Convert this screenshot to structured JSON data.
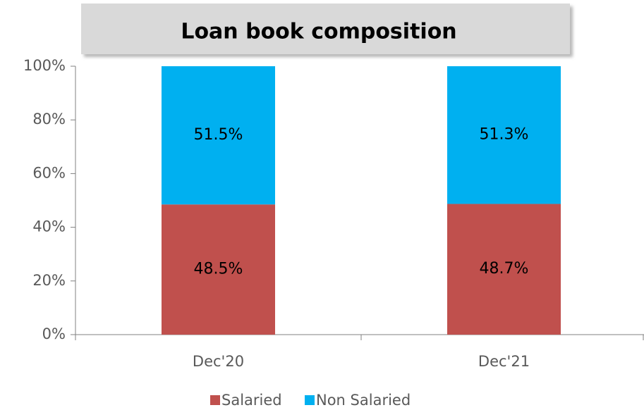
{
  "chart_data": {
    "type": "stacked_bar",
    "title": "Loan book composition",
    "categories": [
      "Dec'20",
      "Dec'21"
    ],
    "series": [
      {
        "name": "Salaried",
        "color": "#c0504d",
        "values": [
          48.5,
          48.7
        ],
        "value_labels": [
          "48.5%",
          "48.7%"
        ]
      },
      {
        "name": "Non Salaried",
        "color": "#00b0f0",
        "values": [
          51.5,
          51.3
        ],
        "value_labels": [
          "51.5%",
          "51.3%"
        ]
      }
    ],
    "ylim": [
      0,
      100
    ],
    "yticks": [
      {
        "value": 0,
        "label": "0%"
      },
      {
        "value": 20,
        "label": "20%"
      },
      {
        "value": 40,
        "label": "40%"
      },
      {
        "value": 60,
        "label": "60%"
      },
      {
        "value": 80,
        "label": "80%"
      },
      {
        "value": 100,
        "label": "100%"
      }
    ],
    "legend": "bottom"
  }
}
